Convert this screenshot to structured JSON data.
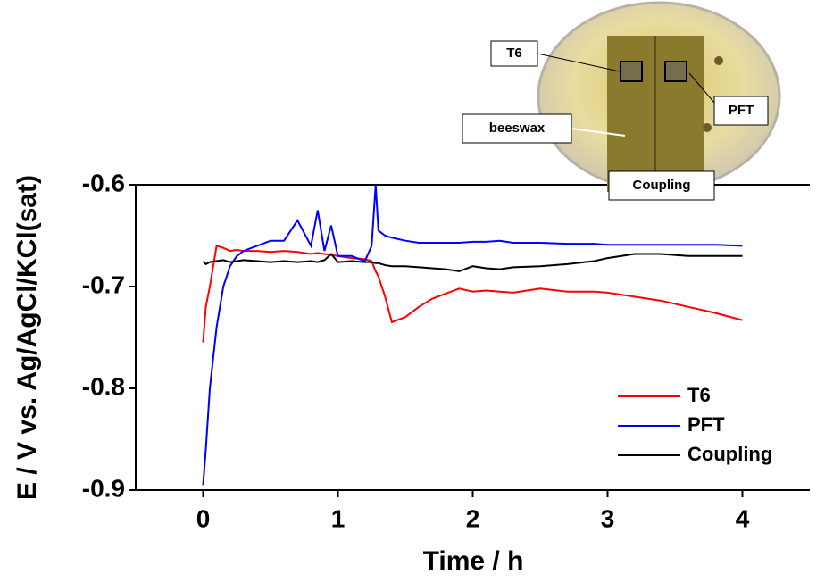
{
  "chart_data": {
    "type": "line",
    "xlabel": "Time / h",
    "ylabel": "E / V vs. Ag/AgCl/KCl(sat)",
    "x": [
      0,
      0.02,
      0.05,
      0.1,
      0.15,
      0.2,
      0.25,
      0.3,
      0.4,
      0.5,
      0.6,
      0.7,
      0.8,
      0.85,
      0.9,
      0.95,
      1.0,
      1.1,
      1.2,
      1.25,
      1.28,
      1.3,
      1.35,
      1.4,
      1.5,
      1.6,
      1.7,
      1.8,
      1.9,
      2.0,
      2.1,
      2.2,
      2.3,
      2.5,
      2.7,
      2.9,
      3.0,
      3.2,
      3.4,
      3.6,
      3.8,
      4.0
    ],
    "series": [
      {
        "name": "T6",
        "color": "#ff0000",
        "values": [
          -0.755,
          -0.72,
          -0.7,
          -0.66,
          -0.662,
          -0.665,
          -0.664,
          -0.665,
          -0.665,
          -0.666,
          -0.665,
          -0.666,
          -0.668,
          -0.667,
          -0.668,
          -0.669,
          -0.67,
          -0.672,
          -0.673,
          -0.675,
          -0.685,
          -0.69,
          -0.71,
          -0.735,
          -0.73,
          -0.72,
          -0.712,
          -0.707,
          -0.702,
          -0.705,
          -0.704,
          -0.705,
          -0.706,
          -0.702,
          -0.705,
          -0.705,
          -0.706,
          -0.71,
          -0.714,
          -0.72,
          -0.726,
          -0.733
        ]
      },
      {
        "name": "PFT",
        "color": "#0000ff",
        "values": [
          -0.895,
          -0.86,
          -0.8,
          -0.74,
          -0.7,
          -0.68,
          -0.67,
          -0.665,
          -0.66,
          -0.655,
          -0.655,
          -0.635,
          -0.66,
          -0.625,
          -0.665,
          -0.64,
          -0.67,
          -0.67,
          -0.675,
          -0.66,
          -0.6,
          -0.645,
          -0.65,
          -0.652,
          -0.655,
          -0.657,
          -0.657,
          -0.657,
          -0.657,
          -0.656,
          -0.656,
          -0.655,
          -0.657,
          -0.657,
          -0.658,
          -0.658,
          -0.659,
          -0.659,
          -0.659,
          -0.659,
          -0.659,
          -0.66
        ]
      },
      {
        "name": "Coupling",
        "color": "#000000",
        "values": [
          -0.675,
          -0.678,
          -0.676,
          -0.675,
          -0.674,
          -0.676,
          -0.675,
          -0.674,
          -0.675,
          -0.676,
          -0.675,
          -0.676,
          -0.675,
          -0.676,
          -0.674,
          -0.668,
          -0.676,
          -0.675,
          -0.676,
          -0.676,
          -0.677,
          -0.677,
          -0.679,
          -0.68,
          -0.68,
          -0.681,
          -0.682,
          -0.683,
          -0.685,
          -0.68,
          -0.682,
          -0.683,
          -0.681,
          -0.68,
          -0.678,
          -0.675,
          -0.672,
          -0.668,
          -0.668,
          -0.67,
          -0.67,
          -0.67
        ]
      }
    ],
    "xlim": [
      -0.5,
      4.5
    ],
    "xticks": [
      0,
      1,
      2,
      3,
      4
    ],
    "ylim": [
      -0.9,
      -0.6
    ],
    "yticks": [
      -0.9,
      -0.8,
      -0.7,
      -0.6
    ],
    "legend": "lower right",
    "inset_labels": [
      "T6",
      "PFT",
      "beeswax",
      "Coupling"
    ]
  }
}
